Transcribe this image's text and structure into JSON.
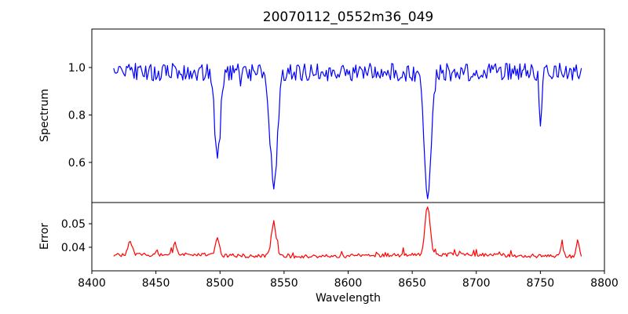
{
  "figure": {
    "background": "#ffffff"
  },
  "chart_data": {
    "type": "line",
    "title": "20070112_0552m36_049",
    "xlabel": "Wavelength",
    "grid": false,
    "legend": "none",
    "x_range": [
      8400,
      8800
    ],
    "x_ticks": [
      8400,
      8450,
      8500,
      8550,
      8600,
      8650,
      8700,
      8750,
      8800
    ],
    "x_data_range": [
      8417,
      8782
    ],
    "sample_step": 1,
    "panels": [
      {
        "name": "spectrum",
        "ylabel": "Spectrum",
        "color": "#0000ff",
        "ylim": [
          0.431,
          1.162
        ],
        "ytick_values": [
          0.6,
          0.8,
          1.0
        ],
        "ytick_labels": [
          "0.6",
          "0.8",
          "1.0"
        ],
        "continuum": 0.98,
        "noise_amp": 0.038,
        "absorption_lines": [
          {
            "center": 8498,
            "depth": 0.375,
            "sigma": 2.2
          },
          {
            "center": 8542,
            "depth": 0.49,
            "sigma": 2.8
          },
          {
            "center": 8662,
            "depth": 0.505,
            "sigma": 2.8
          },
          {
            "center": 8750,
            "depth": 0.2,
            "sigma": 1.0
          }
        ]
      },
      {
        "name": "error",
        "ylabel": "Error",
        "color": "#ff0000",
        "ylim": [
          0.03,
          0.059
        ],
        "ytick_values": [
          0.04,
          0.05
        ],
        "ytick_labels": [
          "0.04",
          "0.05"
        ],
        "baseline": 0.0365,
        "noise_amp": 0.0008,
        "peaks": [
          {
            "center": 8430,
            "height": 0.006,
            "sigma": 1.5
          },
          {
            "center": 8465,
            "height": 0.005,
            "sigma": 1.3
          },
          {
            "center": 8498,
            "height": 0.0075,
            "sigma": 1.5
          },
          {
            "center": 8542,
            "height": 0.0135,
            "sigma": 2.0
          },
          {
            "center": 8662,
            "height": 0.021,
            "sigma": 2.0
          },
          {
            "center": 8767,
            "height": 0.0045,
            "sigma": 1.2
          },
          {
            "center": 8779,
            "height": 0.0065,
            "sigma": 1.2
          }
        ]
      }
    ]
  }
}
